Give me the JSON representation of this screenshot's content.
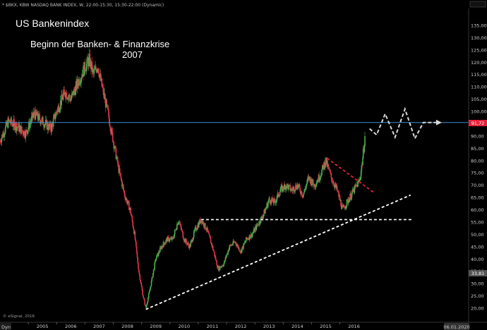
{
  "header_text": "* $BKX, KBW NASDAQ BANK INDEX, W, 22:00-15:30, 15:30-22:00 (Dynamic)",
  "title": "US Bankenindex",
  "annotation_line1": "Beginn der Banken- & Finanzkrise",
  "annotation_line2": "2007",
  "copyright": "© eSignal, 2016",
  "dyn_label": "Dyn",
  "date_badge": "06.01.2020",
  "colors": {
    "background": "#000000",
    "up_candle": "#4caf50",
    "down_candle": "#e0374a",
    "horizontal_line": "#3a8fd8",
    "trendline": "#ffffff",
    "red_trendline": "#e8203a",
    "projection": "#d9d9d9",
    "price_tag": "#e8203a",
    "gray_tag": "#555555"
  },
  "chart_data": {
    "type": "line",
    "title": "US Bankenindex",
    "ylim": [
      16,
      140
    ],
    "y_ticks": [
      20,
      25,
      30,
      35,
      40,
      45,
      50,
      55,
      60,
      65,
      70,
      75,
      80,
      85,
      90,
      95,
      100,
      105,
      110,
      115,
      120,
      125,
      130,
      135
    ],
    "y_tick_labels": [
      "20,00",
      "25,00",
      "30,00",
      "35,00",
      "40,00",
      "45,00",
      "50,00",
      "55,00",
      "60,00",
      "65,00",
      "70,00",
      "75,00",
      "80,00",
      "85,00",
      "90,00",
      "95,00",
      "100,00",
      "105,00",
      "110,00",
      "115,00",
      "120,00",
      "125,00",
      "130,00",
      "135,00"
    ],
    "xlim": [
      2004.0,
      2020.0
    ],
    "x_ticks": [
      2005,
      2006,
      2007,
      2008,
      2009,
      2010,
      2011,
      2012,
      2013,
      2014,
      2015,
      2016
    ],
    "x_tick_labels": [
      "2005",
      "2006",
      "2007",
      "2008",
      "2009",
      "2010",
      "2011",
      "2012",
      "2013",
      "2014",
      "2015",
      "2016"
    ],
    "series": [
      {
        "values": [
          [
            2004.0,
            88
          ],
          [
            2004.3,
            96
          ],
          [
            2004.6,
            94
          ],
          [
            2004.9,
            91
          ],
          [
            2005.2,
            99
          ],
          [
            2005.5,
            96
          ],
          [
            2005.8,
            93
          ],
          [
            2006.0,
            100
          ],
          [
            2006.3,
            108
          ],
          [
            2006.5,
            105
          ],
          [
            2006.8,
            113
          ],
          [
            2007.0,
            118
          ],
          [
            2007.15,
            121
          ],
          [
            2007.3,
            115
          ],
          [
            2007.45,
            119
          ],
          [
            2007.6,
            110
          ],
          [
            2007.8,
            100
          ],
          [
            2008.0,
            88
          ],
          [
            2008.2,
            76
          ],
          [
            2008.4,
            66
          ],
          [
            2008.6,
            60
          ],
          [
            2008.75,
            50
          ],
          [
            2008.9,
            35
          ],
          [
            2009.05,
            25
          ],
          [
            2009.15,
            20
          ],
          [
            2009.3,
            28
          ],
          [
            2009.5,
            40
          ],
          [
            2009.7,
            45
          ],
          [
            2009.9,
            48
          ],
          [
            2010.1,
            48
          ],
          [
            2010.3,
            56
          ],
          [
            2010.5,
            48
          ],
          [
            2010.7,
            45
          ],
          [
            2010.9,
            52
          ],
          [
            2011.1,
            56
          ],
          [
            2011.3,
            52
          ],
          [
            2011.5,
            45
          ],
          [
            2011.7,
            36
          ],
          [
            2011.9,
            38
          ],
          [
            2012.1,
            45
          ],
          [
            2012.3,
            47
          ],
          [
            2012.5,
            43
          ],
          [
            2012.7,
            48
          ],
          [
            2012.9,
            50
          ],
          [
            2013.1,
            54
          ],
          [
            2013.3,
            58
          ],
          [
            2013.5,
            64
          ],
          [
            2013.7,
            63
          ],
          [
            2013.9,
            68
          ],
          [
            2014.1,
            70
          ],
          [
            2014.3,
            68
          ],
          [
            2014.5,
            70
          ],
          [
            2014.7,
            66
          ],
          [
            2014.9,
            73
          ],
          [
            2015.1,
            70
          ],
          [
            2015.3,
            74
          ],
          [
            2015.5,
            80
          ],
          [
            2015.7,
            73
          ],
          [
            2015.9,
            68
          ],
          [
            2016.1,
            60
          ],
          [
            2016.3,
            64
          ],
          [
            2016.5,
            68
          ],
          [
            2016.7,
            72
          ],
          [
            2016.8,
            80
          ],
          [
            2016.9,
            91.72
          ]
        ]
      }
    ],
    "last_price_label": "91,72",
    "marker_label": "33,81",
    "horizontal_level": 95.5,
    "support_level": 56
  }
}
